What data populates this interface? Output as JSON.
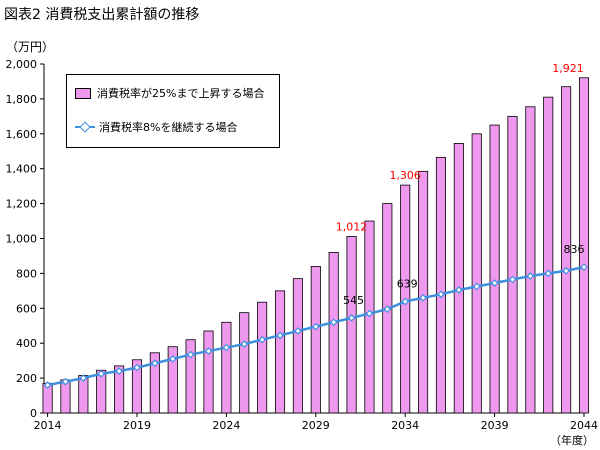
{
  "title": "図表2 消費税支出累計額の推移",
  "y_unit": "（万円）",
  "x_unit": "（年度）",
  "colors": {
    "bar_fill": "#ee99ee",
    "bar_stroke": "#000000",
    "line": "#3f8fdf",
    "bar_label": "#ff0000",
    "line_label": "#000000"
  },
  "chart_data": {
    "type": "bar",
    "x": [
      2014,
      2015,
      2016,
      2017,
      2018,
      2019,
      2020,
      2021,
      2022,
      2023,
      2024,
      2025,
      2026,
      2027,
      2028,
      2029,
      2030,
      2031,
      2032,
      2033,
      2034,
      2035,
      2036,
      2037,
      2038,
      2039,
      2040,
      2041,
      2042,
      2043,
      2044
    ],
    "xticks": [
      "2014",
      "2019",
      "2024",
      "2029",
      "2034",
      "2039",
      "2044"
    ],
    "yticks": [
      "0",
      "200",
      "400",
      "600",
      "800",
      "1,000",
      "1,200",
      "1,400",
      "1,600",
      "1,800",
      "2,000"
    ],
    "ylim": [
      0,
      2000
    ],
    "legend": "top-left",
    "series": [
      {
        "name": "消費税率が25%まで上昇する場合",
        "type": "bar",
        "values": [
          170,
          190,
          215,
          245,
          270,
          305,
          345,
          380,
          420,
          470,
          520,
          575,
          635,
          700,
          770,
          840,
          920,
          1012,
          1100,
          1200,
          1306,
          1385,
          1465,
          1545,
          1600,
          1650,
          1700,
          1755,
          1810,
          1870,
          1921
        ],
        "labels": [
          {
            "x": 2031,
            "text": "1,012"
          },
          {
            "x": 2034,
            "text": "1,306"
          },
          {
            "x": 2044,
            "text": "1,921"
          }
        ]
      },
      {
        "name": "消費税率8%を継続する場合",
        "type": "line",
        "values": [
          160,
          180,
          200,
          225,
          240,
          260,
          285,
          310,
          335,
          355,
          375,
          395,
          420,
          445,
          470,
          495,
          520,
          545,
          570,
          595,
          639,
          660,
          680,
          705,
          725,
          745,
          765,
          785,
          800,
          815,
          836
        ],
        "labels": [
          {
            "x": 2031,
            "text": "545"
          },
          {
            "x": 2034,
            "text": "639"
          },
          {
            "x": 2044,
            "text": "836"
          }
        ]
      }
    ]
  }
}
